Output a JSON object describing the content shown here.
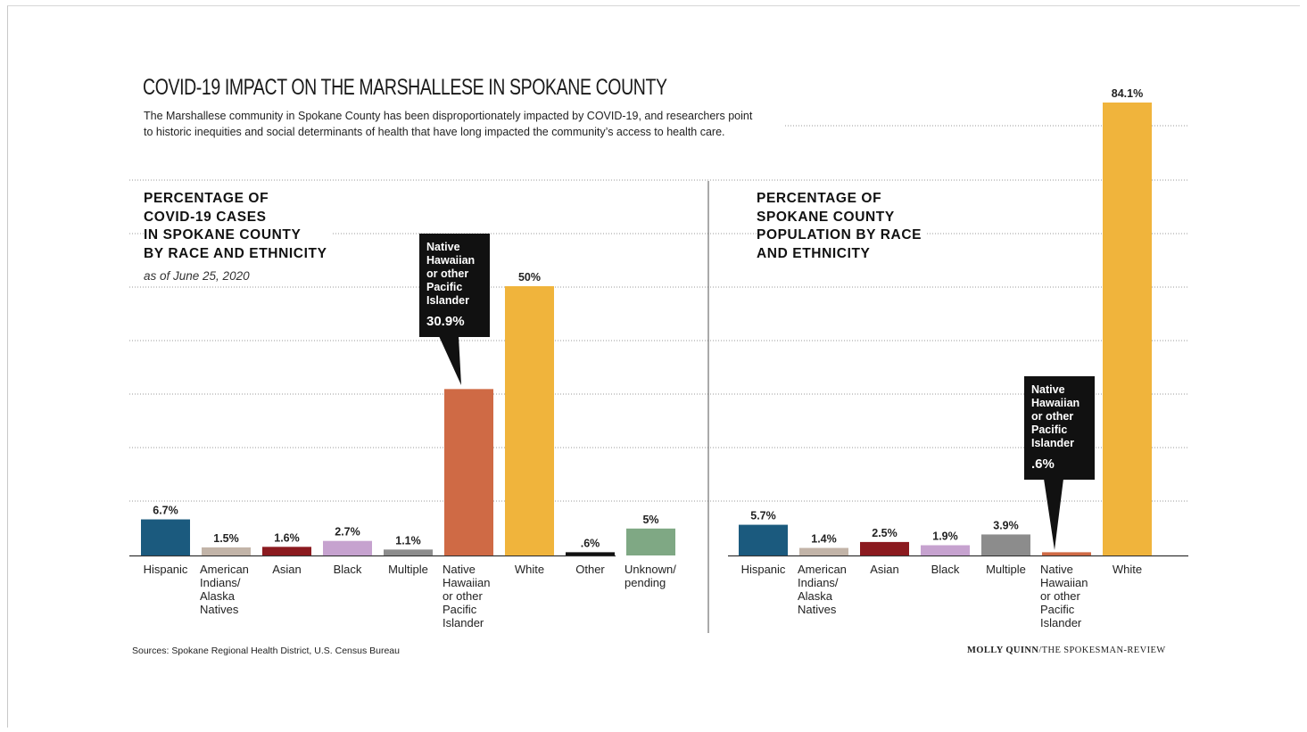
{
  "title": "COVID-19 IMPACT ON THE MARSHALLESE IN SPOKANE COUNTY",
  "subtitle": "The Marshallese community in Spokane County has been disproportionately impacted by COVID-19, and researchers point to historic inequities and social determinants of health that have long impacted the community’s access to health care.",
  "source": "Sources: Spokane Regional Health District, U.S. Census Bureau",
  "credit": {
    "author": "MOLLY QUINN",
    "publication": "/THE SPOKESMAN-REVIEW"
  },
  "chart_data": [
    {
      "type": "bar",
      "title": "PERCENTAGE OF\nCOVID-19 CASES\nIN SPOKANE COUNTY\nBY RACE AND ETHNICITY",
      "note": "as of June 25, 2020",
      "categories": [
        "Hispanic",
        "American Indians/ Alaska Natives",
        "Asian",
        "Black",
        "Multiple",
        "Native Hawaiian or other Pacific Islander",
        "White",
        "Other",
        "Unknown/ pending"
      ],
      "category_lines": [
        [
          "Hispanic"
        ],
        [
          "American",
          "Indians/",
          "Alaska",
          "Natives"
        ],
        [
          "Asian"
        ],
        [
          "Black"
        ],
        [
          "Multiple"
        ],
        [
          "Native",
          "Hawaiian",
          "or other",
          "Pacific",
          "Islander"
        ],
        [
          "White"
        ],
        [
          "Other"
        ],
        [
          "Unknown/",
          "pending"
        ]
      ],
      "values": [
        6.7,
        1.5,
        1.6,
        2.7,
        1.1,
        30.9,
        50,
        0.6,
        5
      ],
      "value_labels": [
        "6.7%",
        "1.5%",
        "1.6%",
        "2.7%",
        "1.1%",
        "",
        "50%",
        ".6%",
        "5%"
      ],
      "colors": [
        "#1b5a7e",
        "#c2b4a8",
        "#8b1a1f",
        "#c6a2cf",
        "#8c8c8c",
        "#cf6a45",
        "#f0b43c",
        "#111111",
        "#7fa884"
      ],
      "callout": {
        "category_index": 5,
        "lines": [
          "Native",
          "Hawaiian",
          "or other",
          "Pacific",
          "Islander"
        ],
        "value_label": "30.9%"
      },
      "ylim": [
        0,
        84.1
      ]
    },
    {
      "type": "bar",
      "title": "PERCENTAGE OF\nSPOKANE COUNTY\nPOPULATION BY RACE\nAND ETHNICITY",
      "categories": [
        "Hispanic",
        "American Indians/ Alaska Natives",
        "Asian",
        "Black",
        "Multiple",
        "Native Hawaiian or other Pacific Islander",
        "White"
      ],
      "category_lines": [
        [
          "Hispanic"
        ],
        [
          "American",
          "Indians/",
          "Alaska",
          "Natives"
        ],
        [
          "Asian"
        ],
        [
          "Black"
        ],
        [
          "Multiple"
        ],
        [
          "Native",
          "Hawaiian",
          "or other",
          "Pacific",
          "Islander"
        ],
        [
          "White"
        ]
      ],
      "values": [
        5.7,
        1.4,
        2.5,
        1.9,
        3.9,
        0.6,
        84.1
      ],
      "value_labels": [
        "5.7%",
        "1.4%",
        "2.5%",
        "1.9%",
        "3.9%",
        "",
        "84.1%"
      ],
      "colors": [
        "#1b5a7e",
        "#c2b4a8",
        "#8b1a1f",
        "#c6a2cf",
        "#8c8c8c",
        "#cf6a45",
        "#f0b43c"
      ],
      "callout": {
        "category_index": 5,
        "lines": [
          "Native",
          "Hawaiian",
          "or other",
          "Pacific",
          "Islander"
        ],
        "value_label": ".6%"
      },
      "ylim": [
        0,
        84.1
      ]
    }
  ]
}
